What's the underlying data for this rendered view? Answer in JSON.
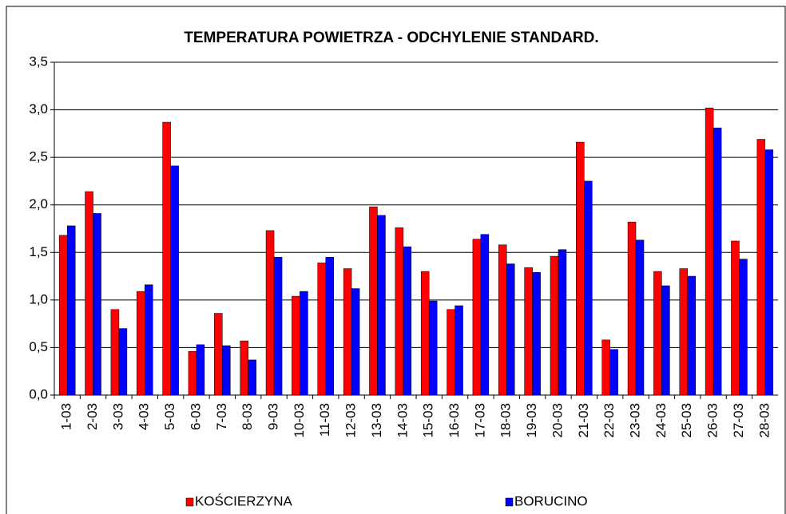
{
  "chart_data": {
    "type": "bar",
    "title": "TEMPERATURA POWIETRZA - ODCHYLENIE STANDARD.",
    "categories": [
      "1-03",
      "2-03",
      "3-03",
      "4-03",
      "5-03",
      "6-03",
      "7-03",
      "8-03",
      "9-03",
      "10-03",
      "11-03",
      "12-03",
      "13-03",
      "14-03",
      "15-03",
      "16-03",
      "17-03",
      "18-03",
      "19-03",
      "20-03",
      "21-03",
      "22-03",
      "23-03",
      "24-03",
      "25-03",
      "26-03",
      "27-03",
      "28-03"
    ],
    "series": [
      {
        "name": "KOŚCIERZYNA",
        "color": "#ff0000",
        "values": [
          1.68,
          2.14,
          0.9,
          1.09,
          2.87,
          0.46,
          0.86,
          0.57,
          1.73,
          1.04,
          1.39,
          1.33,
          1.98,
          1.76,
          1.3,
          0.9,
          1.64,
          1.58,
          1.34,
          1.46,
          2.66,
          0.58,
          1.82,
          1.3,
          1.33,
          3.02,
          1.62,
          2.69
        ]
      },
      {
        "name": "BORUCINO",
        "color": "#0000ff",
        "values": [
          1.78,
          1.91,
          0.7,
          1.16,
          2.41,
          0.53,
          0.52,
          0.37,
          1.45,
          1.09,
          1.45,
          1.12,
          1.89,
          1.56,
          0.99,
          0.94,
          1.69,
          1.38,
          1.29,
          1.53,
          2.25,
          0.48,
          1.63,
          1.15,
          1.25,
          2.81,
          1.43,
          2.58
        ]
      }
    ],
    "ylim": [
      0,
      3.5
    ],
    "yticks": [
      {
        "value": 0,
        "label": "0,0"
      },
      {
        "value": 0.5,
        "label": "0,5"
      },
      {
        "value": 1,
        "label": "1,0"
      },
      {
        "value": 1.5,
        "label": "1,5"
      },
      {
        "value": 2,
        "label": "2,0"
      },
      {
        "value": 2.5,
        "label": "2,5"
      },
      {
        "value": 3,
        "label": "3,0"
      },
      {
        "value": 3.5,
        "label": "3,5"
      }
    ],
    "grid": true,
    "legend": "bottom"
  }
}
